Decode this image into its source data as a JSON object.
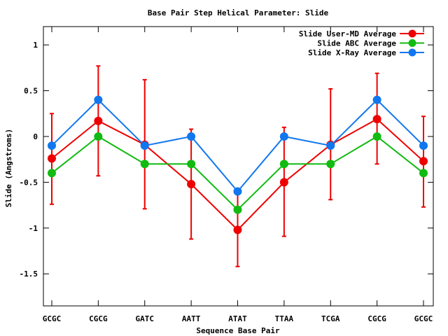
{
  "chart_data": {
    "type": "line",
    "title": "Base Pair Step Helical Parameter: Slide",
    "xlabel": "Sequence Base Pair",
    "ylabel": "Slide (Angstroms)",
    "categories": [
      "GCGC",
      "CGCG",
      "GATC",
      "AATT",
      "ATAT",
      "TTAA",
      "TCGA",
      "CGCG",
      "GCGC"
    ],
    "ylim": [
      -1.85,
      1.2
    ],
    "yticks": [
      1,
      0.5,
      0,
      -0.5,
      -1,
      -1.5
    ],
    "ytick_labels": [
      "1",
      "0.5",
      "0",
      "-0.5",
      "-1",
      "-1.5"
    ],
    "legend_position": "top-right",
    "grid": false,
    "series": [
      {
        "name": "Slide User-MD Average",
        "color": "#ee0000",
        "values": [
          -0.24,
          0.17,
          -0.09,
          -0.52,
          -1.02,
          -0.5,
          -0.09,
          0.19,
          -0.27
        ],
        "error_low": [
          -0.74,
          -0.43,
          -0.79,
          -1.12,
          -1.42,
          -1.09,
          -0.69,
          -0.3,
          -0.77
        ],
        "error_high": [
          0.25,
          0.77,
          0.62,
          0.08,
          -0.62,
          0.1,
          0.52,
          0.69,
          0.22
        ]
      },
      {
        "name": "Slide ABC Average",
        "color": "#11bb11",
        "values": [
          -0.4,
          0.0,
          -0.3,
          -0.3,
          -0.8,
          -0.3,
          -0.3,
          0.0,
          -0.4
        ]
      },
      {
        "name": "Slide X-Ray Average",
        "color": "#1177ee",
        "values": [
          -0.1,
          0.4,
          -0.1,
          0.0,
          -0.6,
          0.0,
          -0.1,
          0.4,
          -0.1
        ]
      }
    ]
  }
}
